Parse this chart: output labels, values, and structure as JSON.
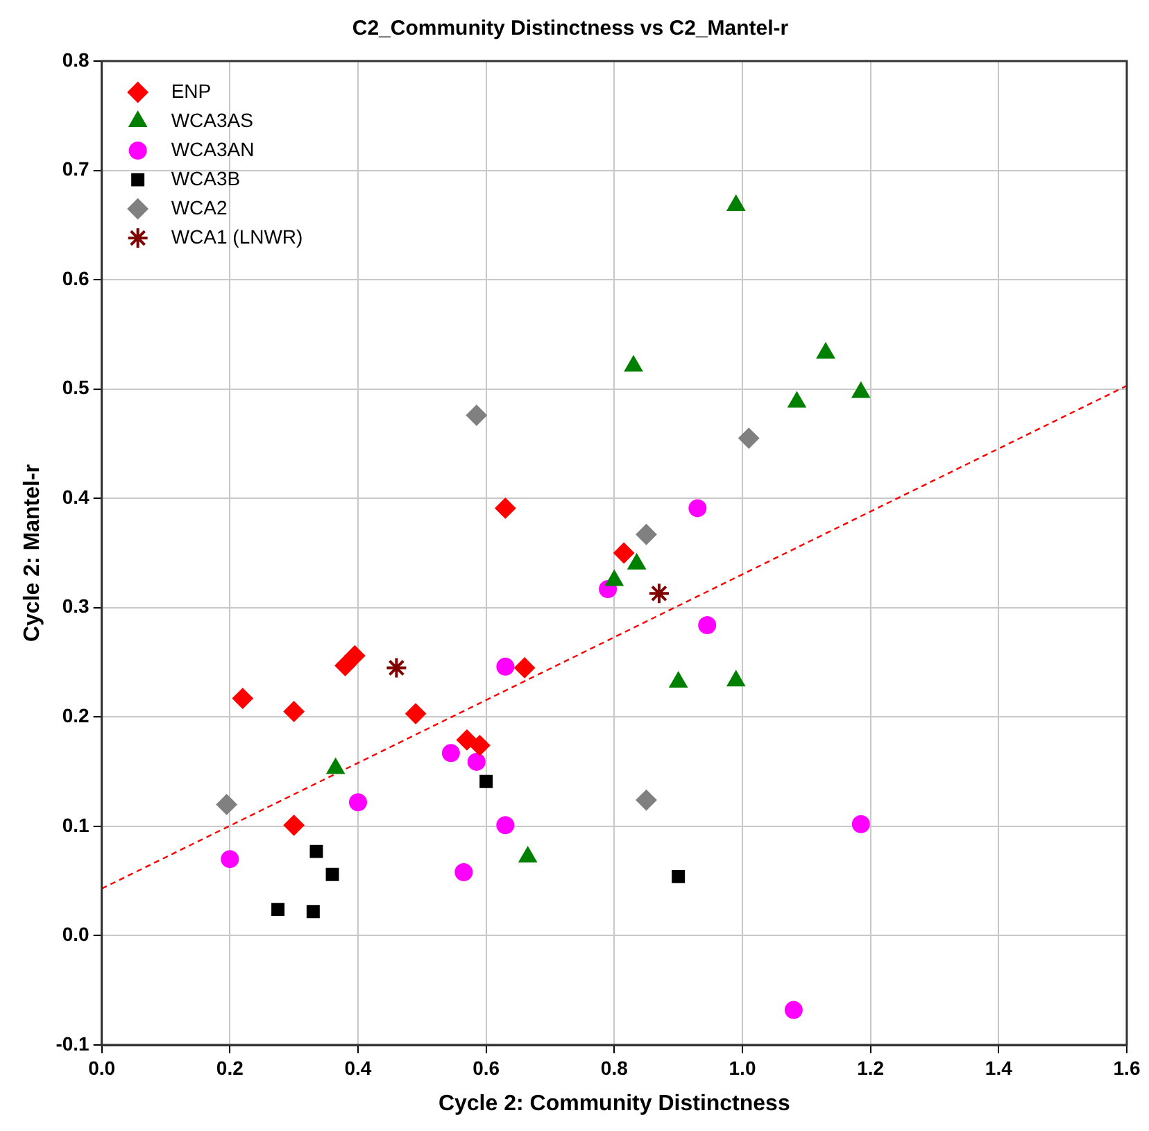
{
  "chart_data": {
    "type": "scatter",
    "title": "C2_Community Distinctness vs C2_Mantel-r",
    "xlabel": "Cycle 2: Community Distinctness",
    "ylabel": "Cycle 2: Mantel-r",
    "xlim": [
      0,
      1.6
    ],
    "ylim": [
      -0.1,
      0.8
    ],
    "xticks": [
      {
        "value": 0,
        "label": "0.0"
      },
      {
        "value": 0.2,
        "label": "0.2"
      },
      {
        "value": 0.4,
        "label": "0.4"
      },
      {
        "value": 0.6,
        "label": "0.6"
      },
      {
        "value": 0.8,
        "label": "0.8"
      },
      {
        "value": 1,
        "label": "1.0"
      },
      {
        "value": 1.2,
        "label": "1.2"
      },
      {
        "value": 1.4,
        "label": "1.4"
      },
      {
        "value": 1.6,
        "label": "1.6"
      }
    ],
    "yticks": [
      {
        "value": -0.1,
        "label": "-0.1"
      },
      {
        "value": 0,
        "label": "0.0"
      },
      {
        "value": 0.1,
        "label": "0.1"
      },
      {
        "value": 0.2,
        "label": "0.2"
      },
      {
        "value": 0.3,
        "label": "0.3"
      },
      {
        "value": 0.4,
        "label": "0.4"
      },
      {
        "value": 0.5,
        "label": "0.5"
      },
      {
        "value": 0.6,
        "label": "0.6"
      },
      {
        "value": 0.7,
        "label": "0.7"
      },
      {
        "value": 0.8,
        "label": "0.8"
      }
    ],
    "grid": true,
    "legend": "top left",
    "series": [
      {
        "name": "ENP",
        "color": "#ff0000",
        "marker": "diamond",
        "x": [
          0.22,
          0.3,
          0.3,
          0.38,
          0.395,
          0.49,
          0.57,
          0.59,
          0.63,
          0.66,
          0.815
        ],
        "values": [
          0.217,
          0.205,
          0.101,
          0.247,
          0.256,
          0.203,
          0.179,
          0.174,
          0.391,
          0.245,
          0.35
        ]
      },
      {
        "name": "WCA3AS",
        "color": "#008000",
        "marker": "triangle",
        "x": [
          0.365,
          0.665,
          0.8,
          0.835,
          0.83,
          0.9,
          0.99,
          0.99,
          1.085,
          1.13,
          1.185
        ],
        "values": [
          0.153,
          0.072,
          0.325,
          0.34,
          0.521,
          0.232,
          0.233,
          0.668,
          0.488,
          0.533,
          0.497
        ]
      },
      {
        "name": "WCA3AN",
        "color": "#ff00ff",
        "marker": "circle",
        "x": [
          0.2,
          0.4,
          0.545,
          0.565,
          0.585,
          0.63,
          0.63,
          0.79,
          0.93,
          0.945,
          1.08,
          1.185
        ],
        "values": [
          0.07,
          0.122,
          0.167,
          0.058,
          0.159,
          0.101,
          0.246,
          0.317,
          0.391,
          0.284,
          -0.068,
          0.102
        ]
      },
      {
        "name": "WCA3B",
        "color": "#000000",
        "marker": "square",
        "x": [
          0.275,
          0.33,
          0.335,
          0.36,
          0.6,
          0.9
        ],
        "values": [
          0.024,
          0.022,
          0.077,
          0.056,
          0.141,
          0.054
        ]
      },
      {
        "name": "WCA2",
        "color": "#808080",
        "marker": "diamond",
        "x": [
          0.195,
          0.585,
          0.85,
          0.85,
          1.01
        ],
        "values": [
          0.12,
          0.476,
          0.367,
          0.124,
          0.455
        ]
      },
      {
        "name": "WCA1 (LNWR)",
        "color": "#800000",
        "marker": "cross",
        "x": [
          0.46,
          0.87
        ],
        "values": [
          0.245,
          0.313
        ]
      },
      {
        "type": "line",
        "color": "#ff0000",
        "marker": "none",
        "line_style": "dashed",
        "x": [
          0,
          1.6
        ],
        "values": [
          0.043,
          0.503
        ]
      }
    ]
  }
}
